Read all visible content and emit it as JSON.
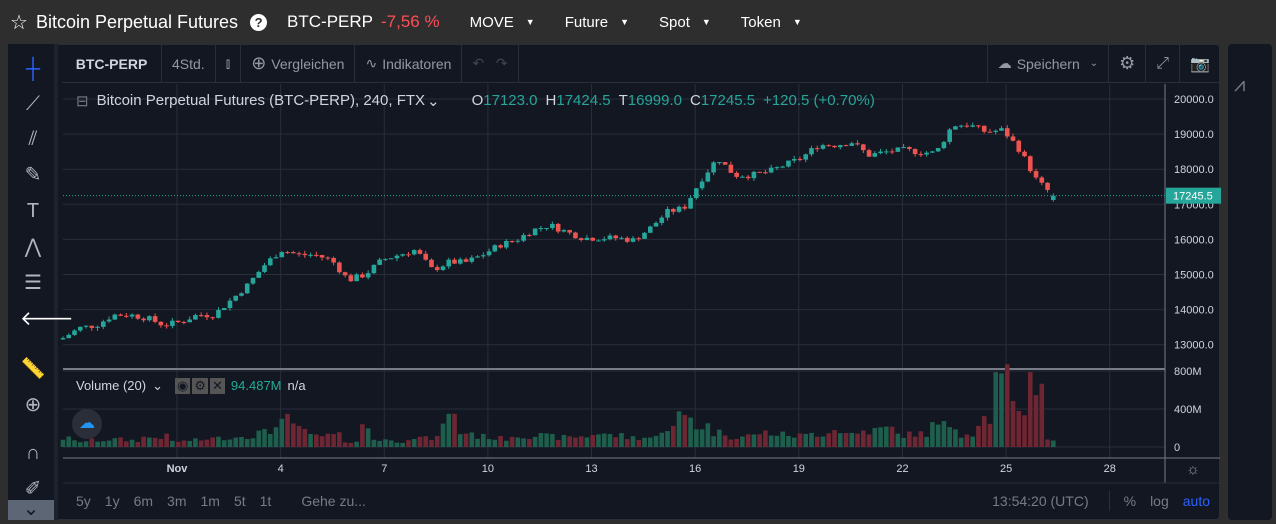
{
  "header": {
    "title": "Bitcoin Perpetual Futures",
    "symbol": "BTC-PERP",
    "change": "-7,56 %",
    "menus": [
      "MOVE",
      "Future",
      "Spot",
      "Token"
    ]
  },
  "toolbar": {
    "symbol": "BTC-PERP",
    "interval": "4Std.",
    "compare": "Vergleichen",
    "indicators": "Indikatoren",
    "save": "Speichern"
  },
  "legend": {
    "name": "Bitcoin Perpetual Futures (BTC-PERP), 240, FTX",
    "o_label": "O",
    "o": "17123.0",
    "h_label": "H",
    "h": "17424.5",
    "l_label": "T",
    "l": "16999.0",
    "c_label": "C",
    "c": "17245.5",
    "change": "+120.5 (+0.70%)"
  },
  "volume_legend": {
    "name": "Volume (20)",
    "value": "94.487M",
    "ma": "n/a"
  },
  "bottom": {
    "ranges": [
      "5y",
      "1y",
      "6m",
      "3m",
      "1m",
      "5t",
      "1t"
    ],
    "goto": "Gehe zu...",
    "time": "13:54:20 (UTC)",
    "percent": "%",
    "log": "log",
    "auto": "auto"
  },
  "colors": {
    "up": "#26a69a",
    "down": "#ef5350",
    "vol_up": "#1e5e4c",
    "vol_down": "#6e2633",
    "bg": "#131722",
    "accent": "#2962ff"
  },
  "chart_data": {
    "type": "candlestick",
    "price_ticks": [
      "20000.0",
      "19000.0",
      "18000.0",
      "17000.0",
      "16000.0",
      "15000.0",
      "14000.0",
      "13000.0"
    ],
    "price_ylim": [
      12700,
      20100
    ],
    "last_price": "17245.5",
    "volume_ticks": [
      "800M",
      "400M",
      "0"
    ],
    "volume_ylim": [
      0,
      800
    ],
    "x_ticks": [
      "Nov",
      "4",
      "7",
      "10",
      "13",
      "16",
      "19",
      "22",
      "25",
      "28"
    ],
    "x_tick_days": [
      1,
      4,
      7,
      10,
      13,
      16,
      19,
      22,
      25,
      28
    ],
    "x_range_days": [
      -2.3,
      29.6
    ],
    "start_day": -2.3,
    "end_day": 26.3,
    "close_path": [
      13190,
      13480,
      13560,
      13850,
      13850,
      13760,
      13560,
      13650,
      13850,
      13850,
      14270,
      14700,
      15270,
      15700,
      15560,
      15560,
      15410,
      14840,
      15000,
      15410,
      15560,
      15700,
      15130,
      15350,
      15350,
      15560,
      15840,
      15980,
      16270,
      16410,
      16210,
      16040,
      16040,
      16040,
      15980,
      16330,
      16780,
      16900,
      17690,
      18320,
      17830,
      17830,
      17920,
      18120,
      18320,
      18690,
      18690,
      18770,
      18400,
      18490,
      18550,
      18490,
      18460,
      19260,
      19260,
      19060,
      19120,
      18550,
      17690,
      17245
    ],
    "volume_path_M": [
      90,
      60,
      70,
      80,
      70,
      100,
      110,
      60,
      70,
      90,
      100,
      120,
      150,
      280,
      200,
      110,
      120,
      60,
      210,
      80,
      60,
      100,
      90,
      310,
      150,
      110,
      90,
      120,
      120,
      110,
      100,
      110,
      140,
      120,
      100,
      100,
      200,
      320,
      220,
      150,
      110,
      120,
      150,
      130,
      120,
      140,
      180,
      140,
      170,
      190,
      130,
      140,
      220,
      230,
      140,
      300,
      680,
      420,
      700,
      90
    ]
  }
}
